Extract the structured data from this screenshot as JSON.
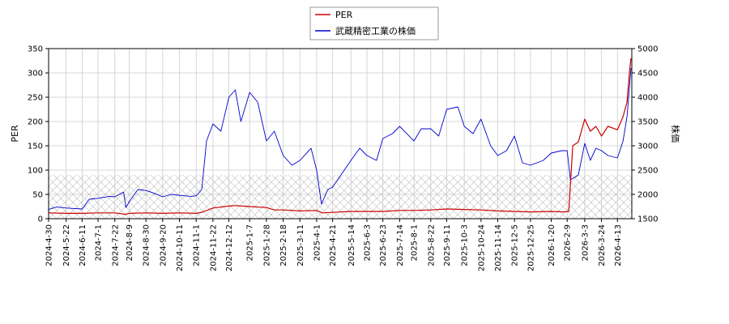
{
  "chart_data": {
    "type": "line",
    "legend": {
      "placement": "top-center",
      "entries": [
        {
          "label": "PER",
          "color": "#cc0000"
        },
        {
          "label": "武蔵精密工業の株価",
          "color": "#0000cc"
        }
      ]
    },
    "ylabel_left": "PER",
    "ylabel_right": "株価",
    "ylim_left": [
      0,
      350
    ],
    "ylim_right": [
      1500,
      5000
    ],
    "yticks_left": [
      "0",
      "50",
      "100",
      "150",
      "200",
      "250",
      "300",
      "350"
    ],
    "yticks_right": [
      "1500",
      "2000",
      "2500",
      "3000",
      "3500",
      "4000",
      "4500",
      "5000"
    ],
    "xlim": [
      "2024-04-30",
      "2026-05-01"
    ],
    "xticks": [
      "2024-4-30",
      "2024-5-22",
      "2024-6-11",
      "2024-7-1",
      "2024-7-22",
      "2024-8-9",
      "2024-8-30",
      "2024-9-20",
      "2024-10-11",
      "2024-11-1",
      "2024-11-22",
      "2024-12-12",
      "2025-1-7",
      "2025-1-28",
      "2025-2-18",
      "2025-3-11",
      "2025-4-1",
      "2025-4-21",
      "2025-5-14",
      "2025-6-3",
      "2025-6-23",
      "2025-7-14",
      "2025-8-1",
      "2025-8-22",
      "2025-9-11",
      "2025-10-3",
      "2025-10-24",
      "2025-11-14",
      "2025-12-5",
      "2025-12-25",
      "2026-1-20",
      "2026-2-9",
      "2026-3-3",
      "2026-3-24",
      "2026-4-13"
    ],
    "grid": true,
    "hatched_band_left": [
      0,
      90
    ],
    "series": [
      {
        "name": "PER",
        "axis": "left",
        "color": "#cc0000",
        "points": [
          [
            "2024-04-30",
            12
          ],
          [
            "2024-05-22",
            11
          ],
          [
            "2024-06-11",
            11
          ],
          [
            "2024-07-01",
            12
          ],
          [
            "2024-07-22",
            12
          ],
          [
            "2024-08-05",
            9
          ],
          [
            "2024-08-09",
            11
          ],
          [
            "2024-08-30",
            12
          ],
          [
            "2024-09-20",
            11
          ],
          [
            "2024-10-11",
            12
          ],
          [
            "2024-11-01",
            11
          ],
          [
            "2024-11-08",
            13
          ],
          [
            "2024-11-22",
            22
          ],
          [
            "2024-12-12",
            26
          ],
          [
            "2024-12-20",
            27
          ],
          [
            "2025-01-07",
            25
          ],
          [
            "2025-01-28",
            23
          ],
          [
            "2025-02-07",
            18
          ],
          [
            "2025-02-18",
            18
          ],
          [
            "2025-03-11",
            16
          ],
          [
            "2025-04-01",
            17
          ],
          [
            "2025-04-08",
            12
          ],
          [
            "2025-04-21",
            13
          ],
          [
            "2025-05-14",
            15
          ],
          [
            "2025-06-03",
            15
          ],
          [
            "2025-06-23",
            15
          ],
          [
            "2025-07-14",
            17
          ],
          [
            "2025-08-01",
            17
          ],
          [
            "2025-08-22",
            18
          ],
          [
            "2025-09-11",
            20
          ],
          [
            "2025-10-03",
            19
          ],
          [
            "2025-10-24",
            18
          ],
          [
            "2025-11-14",
            16
          ],
          [
            "2025-12-05",
            15
          ],
          [
            "2025-12-25",
            14
          ],
          [
            "2026-01-20",
            15
          ],
          [
            "2026-02-05",
            14
          ],
          [
            "2026-02-11",
            15
          ],
          [
            "2026-02-13",
            70
          ],
          [
            "2026-02-16",
            150
          ],
          [
            "2026-02-23",
            158
          ],
          [
            "2026-03-03",
            205
          ],
          [
            "2026-03-10",
            180
          ],
          [
            "2026-03-17",
            190
          ],
          [
            "2026-03-24",
            170
          ],
          [
            "2026-04-01",
            190
          ],
          [
            "2026-04-13",
            183
          ],
          [
            "2026-04-20",
            210
          ],
          [
            "2026-04-25",
            240
          ],
          [
            "2026-04-28",
            300
          ],
          [
            "2026-04-30",
            330
          ]
        ]
      },
      {
        "name": "武蔵精密工業の株価",
        "axis": "right",
        "color": "#0000cc",
        "points": [
          [
            "2024-04-30",
            1690
          ],
          [
            "2024-05-10",
            1740
          ],
          [
            "2024-05-22",
            1720
          ],
          [
            "2024-06-11",
            1700
          ],
          [
            "2024-06-20",
            1900
          ],
          [
            "2024-07-01",
            1920
          ],
          [
            "2024-07-15",
            1960
          ],
          [
            "2024-07-22",
            1950
          ],
          [
            "2024-08-02",
            2050
          ],
          [
            "2024-08-05",
            1730
          ],
          [
            "2024-08-09",
            1850
          ],
          [
            "2024-08-20",
            2100
          ],
          [
            "2024-08-30",
            2080
          ],
          [
            "2024-09-10",
            2020
          ],
          [
            "2024-09-20",
            1950
          ],
          [
            "2024-10-01",
            2000
          ],
          [
            "2024-10-11",
            1980
          ],
          [
            "2024-10-25",
            1960
          ],
          [
            "2024-11-01",
            1970
          ],
          [
            "2024-11-08",
            2100
          ],
          [
            "2024-11-14",
            3100
          ],
          [
            "2024-11-22",
            3450
          ],
          [
            "2024-12-02",
            3300
          ],
          [
            "2024-12-12",
            4000
          ],
          [
            "2024-12-20",
            4150
          ],
          [
            "2024-12-27",
            3500
          ],
          [
            "2025-01-07",
            4100
          ],
          [
            "2025-01-17",
            3900
          ],
          [
            "2025-01-28",
            3100
          ],
          [
            "2025-02-07",
            3300
          ],
          [
            "2025-02-18",
            2800
          ],
          [
            "2025-03-01",
            2600
          ],
          [
            "2025-03-11",
            2700
          ],
          [
            "2025-03-25",
            2950
          ],
          [
            "2025-04-01",
            2500
          ],
          [
            "2025-04-07",
            1800
          ],
          [
            "2025-04-15",
            2100
          ],
          [
            "2025-04-21",
            2150
          ],
          [
            "2025-05-14",
            2700
          ],
          [
            "2025-05-25",
            2950
          ],
          [
            "2025-06-03",
            2800
          ],
          [
            "2025-06-15",
            2700
          ],
          [
            "2025-06-23",
            3150
          ],
          [
            "2025-07-05",
            3250
          ],
          [
            "2025-07-14",
            3400
          ],
          [
            "2025-08-01",
            3100
          ],
          [
            "2025-08-10",
            3350
          ],
          [
            "2025-08-22",
            3350
          ],
          [
            "2025-09-01",
            3200
          ],
          [
            "2025-09-11",
            3750
          ],
          [
            "2025-09-25",
            3800
          ],
          [
            "2025-10-03",
            3400
          ],
          [
            "2025-10-14",
            3250
          ],
          [
            "2025-10-24",
            3550
          ],
          [
            "2025-11-05",
            3000
          ],
          [
            "2025-11-14",
            2800
          ],
          [
            "2025-11-25",
            2900
          ],
          [
            "2025-12-05",
            3200
          ],
          [
            "2025-12-15",
            2650
          ],
          [
            "2025-12-25",
            2600
          ],
          [
            "2026-01-10",
            2700
          ],
          [
            "2026-01-20",
            2850
          ],
          [
            "2026-02-02",
            2900
          ],
          [
            "2026-02-09",
            2900
          ],
          [
            "2026-02-13",
            2300
          ],
          [
            "2026-02-23",
            2400
          ],
          [
            "2026-03-03",
            3050
          ],
          [
            "2026-03-10",
            2700
          ],
          [
            "2026-03-17",
            2950
          ],
          [
            "2026-03-24",
            2900
          ],
          [
            "2026-04-01",
            2800
          ],
          [
            "2026-04-13",
            2750
          ],
          [
            "2026-04-20",
            3100
          ],
          [
            "2026-04-25",
            3600
          ],
          [
            "2026-04-30",
            4600
          ]
        ]
      }
    ]
  }
}
